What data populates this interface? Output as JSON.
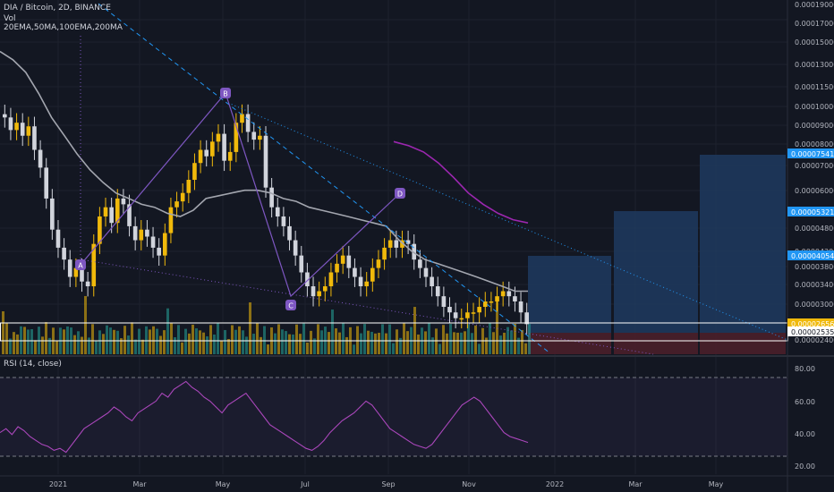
{
  "header": {
    "symbol_line": "DIA / Bitcoin, 2D, BINANCE",
    "vol_label": "Vol",
    "indicators_line": "20EMA,50MA,100EMA,200MA"
  },
  "rsi": {
    "label": "RSI (14, close)",
    "ticks": [
      "80.00",
      "60.00",
      "40.00",
      "20.00"
    ]
  },
  "price_axis": {
    "ticks": [
      "0.00019000",
      "0.00017000",
      "0.00015000",
      "0.00013000",
      "0.00011500",
      "0.00010000",
      "0.00009000",
      "0.00008000",
      "0.00007000",
      "0.00006000",
      "0.00004800",
      "0.00004200",
      "0.00003800",
      "0.00003400",
      "0.00003000",
      "0.00002600",
      "0.00002400"
    ],
    "badges": [
      {
        "text": "0.00007541",
        "color": "#2196f3"
      },
      {
        "text": "0.00005321",
        "color": "#2196f3"
      },
      {
        "text": "0.00004054",
        "color": "#2196f3"
      },
      {
        "text": "0.00002656",
        "color": "#f0b90b"
      },
      {
        "text": "0.00002535",
        "color": "#ffffff"
      }
    ]
  },
  "time_axis": {
    "ticks": [
      "2021",
      "Mar",
      "May",
      "Jul",
      "Sep",
      "Nov",
      "2022",
      "Mar",
      "May"
    ]
  },
  "pattern_points": [
    "A",
    "B",
    "C",
    "D"
  ],
  "colors": {
    "up": "#f0b90b",
    "down": "#d1d4dc",
    "ma_gray": "#a3a6af",
    "ma_purple": "#9c27b0",
    "pattern": "#7e57c2",
    "trend_blue": "#2196f3",
    "target_box": "#1e3a5f",
    "stop_box": "#4a1f2a"
  },
  "chart_data": [
    {
      "type": "candlestick",
      "title": "DIA / Bitcoin, 2D, BINANCE",
      "yscale": "log",
      "ylim": [
        2.4e-05,
        0.00019
      ],
      "x_ticks": [
        "2021",
        "Mar",
        "May",
        "Jul",
        "Sep",
        "Nov",
        "2022",
        "Mar",
        "May"
      ],
      "close": [
        9.5e-05,
        8.8e-05,
        9.2e-05,
        8.5e-05,
        9e-05,
        7.8e-05,
        7e-05,
        5.8e-05,
        4.8e-05,
        4.3e-05,
        4e-05,
        3.6e-05,
        3.8e-05,
        3.5e-05,
        3.4e-05,
        4.4e-05,
        5.2e-05,
        5.5e-05,
        5e-05,
        5.8e-05,
        5.6e-05,
        4.9e-05,
        4.5e-05,
        4.8e-05,
        4.6e-05,
        4.3e-05,
        4.1e-05,
        4.7e-05,
        5.5e-05,
        5.7e-05,
        6e-05,
        6.5e-05,
        7.2e-05,
        7.8e-05,
        7.5e-05,
        8.2e-05,
        8.6e-05,
        7.3e-05,
        7.7e-05,
        9.2e-05,
        9.7e-05,
        8.7e-05,
        8.3e-05,
        8.5e-05,
        6.2e-05,
        5.5e-05,
        5.2e-05,
        4.9e-05,
        4.5e-05,
        4.1e-05,
        3.7e-05,
        3.4e-05,
        3.2e-05,
        3.3e-05,
        3.4e-05,
        3.7e-05,
        3.9e-05,
        4.1e-05,
        3.8e-05,
        3.6e-05,
        3.4e-05,
        3.5e-05,
        3.8e-05,
        4e-05,
        4.3e-05,
        4.5e-05,
        4.3e-05,
        4.5e-05,
        4.4e-05,
        4e-05,
        3.8e-05,
        3.6e-05,
        3.4e-05,
        3.2e-05,
        3e-05,
        2.9e-05,
        2.8e-05,
        2.8e-05,
        2.9e-05,
        2.9e-05,
        3e-05,
        3.1e-05,
        3.1e-05,
        3.2e-05,
        3.3e-05,
        3.2e-05,
        3.1e-05,
        2.9e-05,
        2.7e-05
      ],
      "ma_gray": [
        0.000142,
        0.000135,
        0.000125,
        0.00011,
        9.5e-05,
        8.5e-05,
        7.6e-05,
        6.9e-05,
        6.4e-05,
        6e-05,
        5.8e-05,
        5.6e-05,
        5.5e-05,
        5.3e-05,
        5.2e-05,
        5.4e-05,
        5.8e-05,
        5.9e-05,
        6e-05,
        6.1e-05,
        6.1e-05,
        6e-05,
        5.8e-05,
        5.7e-05,
        5.5e-05,
        5.4e-05,
        5.3e-05,
        5.2e-05,
        5.1e-05,
        5e-05,
        4.9e-05,
        4.5e-05,
        4.2e-05,
        4e-05,
        3.9e-05,
        3.8e-05,
        3.7e-05,
        3.6e-05,
        3.5e-05,
        3.4e-05,
        3.3e-05,
        3.3e-05
      ],
      "ma_purple": [
        8.2e-05,
        8e-05,
        7.7e-05,
        7.2e-05,
        6.6e-05,
        6e-05,
        5.6e-05,
        5.3e-05,
        5.1e-05,
        5e-05
      ],
      "levels": [
        7.541e-05,
        5.321e-05,
        4.054e-05,
        2.656e-05,
        2.535e-05
      ],
      "rsi_ylim": [
        20,
        80
      ],
      "rsi_values": [
        42,
        44,
        41,
        45,
        43,
        40,
        38,
        36,
        35,
        33,
        34,
        32,
        36,
        40,
        44,
        46,
        48,
        50,
        52,
        55,
        53,
        50,
        48,
        52,
        54,
        56,
        58,
        62,
        60,
        64,
        66,
        68,
        65,
        63,
        60,
        58,
        55,
        52,
        56,
        58,
        60,
        62,
        58,
        54,
        50,
        46,
        44,
        42,
        40,
        38,
        36,
        34,
        33,
        35,
        38,
        42,
        45,
        48,
        50,
        52,
        55,
        58,
        56,
        52,
        48,
        44,
        42,
        40,
        38,
        36,
        35,
        34,
        36,
        40,
        44,
        48,
        52,
        56,
        58,
        60,
        58,
        54,
        50,
        46,
        42,
        40,
        39,
        38,
        37
      ]
    }
  ]
}
